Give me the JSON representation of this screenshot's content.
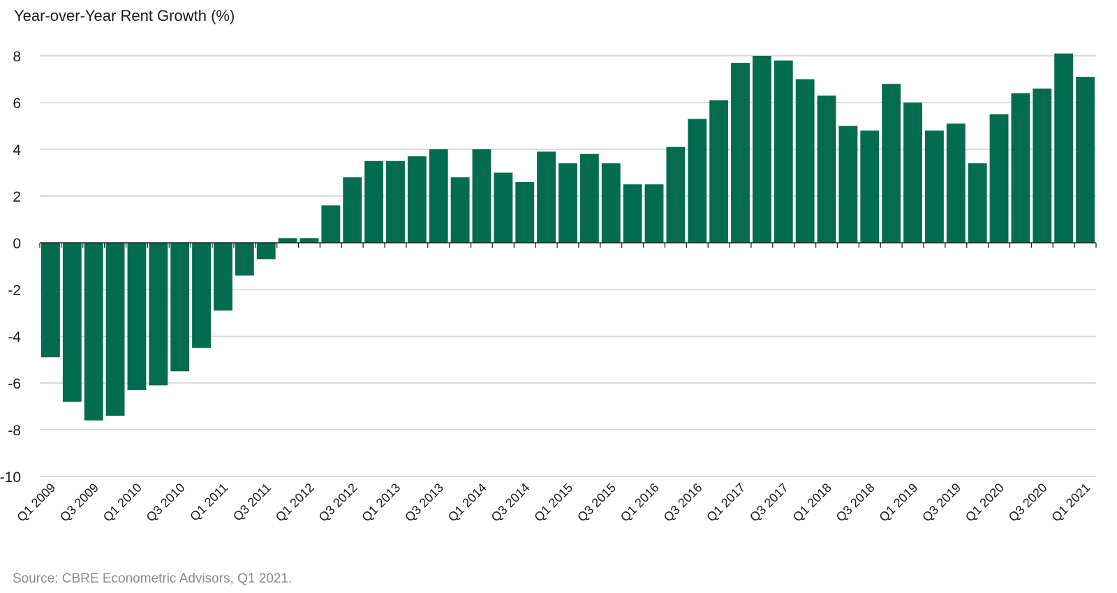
{
  "chart_data": {
    "type": "bar",
    "ylabel": "Year-over-Year Rent Growth (%)",
    "source": "Source: CBRE Econometric Advisors, Q1 2021.",
    "ylim": [
      -10,
      8
    ],
    "yticks": [
      8,
      6,
      4,
      2,
      0,
      -2,
      -4,
      -6,
      -8,
      -10
    ],
    "grid": true,
    "bar_color": "#036c4f",
    "categories": [
      "Q1 2009",
      "Q2 2009",
      "Q3 2009",
      "Q4 2009",
      "Q1 2010",
      "Q2 2010",
      "Q3 2010",
      "Q4 2010",
      "Q1 2011",
      "Q2 2011",
      "Q3 2011",
      "Q4 2011",
      "Q1 2012",
      "Q2 2012",
      "Q3 2012",
      "Q4 2012",
      "Q1 2013",
      "Q2 2013",
      "Q3 2013",
      "Q4 2013",
      "Q1 2014",
      "Q2 2014",
      "Q3 2014",
      "Q4 2014",
      "Q1 2015",
      "Q2 2015",
      "Q3 2015",
      "Q4 2015",
      "Q1 2016",
      "Q2 2016",
      "Q3 2016",
      "Q4 2016",
      "Q1 2017",
      "Q2 2017",
      "Q3 2017",
      "Q4 2017",
      "Q1 2018",
      "Q2 2018",
      "Q3 2018",
      "Q4 2018",
      "Q1 2019",
      "Q2 2019",
      "Q3 2019",
      "Q4 2019",
      "Q1 2020",
      "Q2 2020",
      "Q3 2020",
      "Q4 2020",
      "Q1 2021"
    ],
    "xtick_labels": [
      "Q1 2009",
      "Q3 2009",
      "Q1 2010",
      "Q3 2010",
      "Q1 2011",
      "Q3 2011",
      "Q1 2012",
      "Q3 2012",
      "Q1 2013",
      "Q3 2013",
      "Q1 2014",
      "Q3 2014",
      "Q1 2015",
      "Q3 2015",
      "Q1 2016",
      "Q3 2016",
      "Q1 2017",
      "Q3 2017",
      "Q1 2018",
      "Q3 2018",
      "Q1 2019",
      "Q3 2019",
      "Q1 2020",
      "Q3 2020",
      "Q1 2021"
    ],
    "values": [
      -4.9,
      -6.8,
      -7.6,
      -7.4,
      -6.3,
      -6.1,
      -5.5,
      -4.5,
      -2.9,
      -1.4,
      -0.7,
      0.2,
      0.2,
      1.6,
      2.8,
      3.5,
      3.5,
      3.7,
      4.0,
      2.8,
      4.0,
      3.0,
      2.6,
      3.9,
      3.4,
      3.8,
      3.4,
      2.5,
      2.5,
      4.1,
      5.3,
      6.1,
      7.7,
      8.0,
      7.8,
      7.0,
      6.3,
      5.0,
      4.8,
      6.8,
      6.0,
      4.8,
      5.1,
      3.4,
      5.5,
      6.4,
      6.6,
      8.1,
      7.1
    ]
  }
}
